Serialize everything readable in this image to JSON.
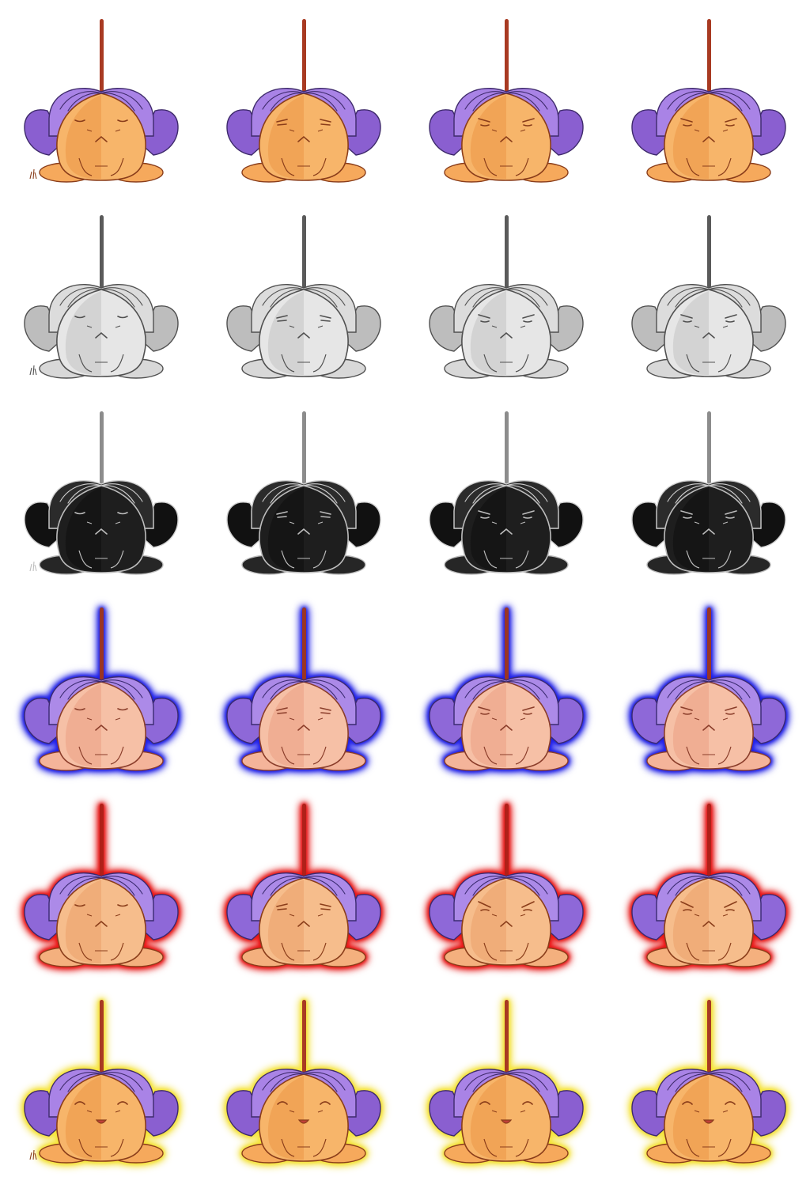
{
  "sprite_sheet": {
    "columns": 4,
    "rows": [
      {
        "variant": "normal",
        "aura": "none",
        "palette": {
          "stem": "#a83a22",
          "hair": "#a983e6",
          "hair_dark": "#8a5fd0",
          "hair_line": "#3e2a6b",
          "body": "#f7b56a",
          "body_shade": "#e8913e",
          "body_line": "#8a3d1a",
          "feet": "#f6a95c"
        },
        "frames": [
          {
            "expression": "neutral",
            "grass": true
          },
          {
            "expression": "squint"
          },
          {
            "expression": "worried"
          },
          {
            "expression": "worried"
          }
        ]
      },
      {
        "variant": "grayscale",
        "aura": "none",
        "palette": {
          "stem": "#5a5a5a",
          "hair": "#dcdcdc",
          "hair_dark": "#bdbdbd",
          "hair_line": "#505050",
          "body": "#e6e6e6",
          "body_shade": "#bdbdbd",
          "body_line": "#505050",
          "feet": "#d8d8d8"
        },
        "frames": [
          {
            "expression": "neutral",
            "grass": true
          },
          {
            "expression": "squint"
          },
          {
            "expression": "worried"
          },
          {
            "expression": "worried"
          }
        ]
      },
      {
        "variant": "dark",
        "aura": "none",
        "palette": {
          "stem": "#8c8c8c",
          "hair": "#2b2b2b",
          "hair_dark": "#111111",
          "hair_line": "#cfcfcf",
          "body": "#1e1e1e",
          "body_shade": "#0c0c0c",
          "body_line": "#bdbdbd",
          "feet": "#262626"
        },
        "frames": [
          {
            "expression": "neutral",
            "grass": true
          },
          {
            "expression": "squint"
          },
          {
            "expression": "worried"
          },
          {
            "expression": "worried"
          }
        ]
      },
      {
        "variant": "blue-aura",
        "aura": "#2020ee",
        "palette": {
          "stem": "#9a3524",
          "hair": "#ac8ae8",
          "hair_dark": "#8e68d8",
          "hair_line": "#3a2a70",
          "body": "#f6c0a6",
          "body_shade": "#e99a7c",
          "body_line": "#8a3d2a",
          "feet": "#f4b49a"
        },
        "frames": [
          {
            "expression": "neutral"
          },
          {
            "expression": "squint"
          },
          {
            "expression": "worried"
          },
          {
            "expression": "worried"
          }
        ]
      },
      {
        "variant": "red-aura",
        "aura": "#ee1a1a",
        "palette": {
          "stem": "#b02018",
          "hair": "#ac8ae8",
          "hair_dark": "#8e68d8",
          "hair_line": "#3a2a70",
          "body": "#f6bd8c",
          "body_shade": "#e99a62",
          "body_line": "#8a3d1a",
          "feet": "#f4b07e"
        },
        "frames": [
          {
            "expression": "neutral"
          },
          {
            "expression": "squint"
          },
          {
            "expression": "angry"
          },
          {
            "expression": "angry"
          }
        ]
      },
      {
        "variant": "yellow-aura",
        "aura": "#f5e43c",
        "palette": {
          "stem": "#a83a22",
          "hair": "#a983e6",
          "hair_dark": "#8a5fd0",
          "hair_line": "#3e2a6b",
          "body": "#f7b56a",
          "body_shade": "#e8913e",
          "body_line": "#8a3d1a",
          "feet": "#f6a95c"
        },
        "frames": [
          {
            "expression": "smile",
            "grass": true
          },
          {
            "expression": "smile"
          },
          {
            "expression": "happy"
          },
          {
            "expression": "happy"
          }
        ]
      }
    ]
  }
}
